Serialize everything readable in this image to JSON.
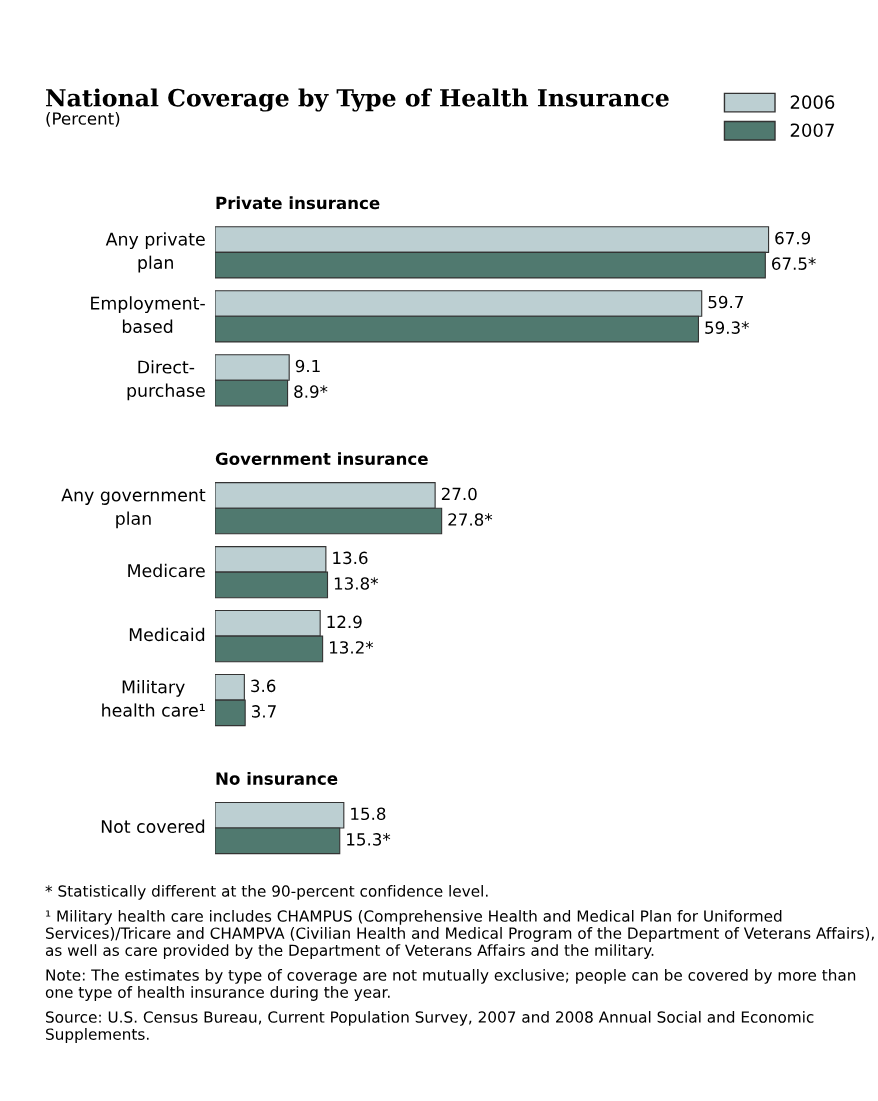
{
  "chart_data": {
    "type": "bar",
    "orientation": "horizontal",
    "title": "National Coverage by Type of Health Insurance",
    "subtitle": "(Percent)",
    "categories": [
      "Private insurance",
      "Any private\nplan",
      "Employment-\nbased",
      "Direct-\npurchase",
      "Government insurance",
      "Any government\nplan",
      "Medicare",
      "Medicaid",
      "Military\nhealth care¹",
      "No insurance",
      "Not covered"
    ],
    "series": [
      {
        "name": "2006",
        "color": "#bccfd2",
        "values": [
          null,
          67.9,
          59.7,
          9.1,
          null,
          27.0,
          13.6,
          12.9,
          3.6,
          null,
          15.8
        ],
        "value_labels": [
          null,
          "67.9",
          "59.7",
          "9.1",
          null,
          "27.0",
          "13.6",
          "12.9",
          "3.6",
          null,
          "15.8"
        ]
      },
      {
        "name": "2007",
        "color": "#50796f",
        "values": [
          null,
          67.5,
          59.3,
          8.9,
          null,
          27.8,
          13.8,
          13.2,
          3.7,
          null,
          15.3
        ],
        "value_labels": [
          null,
          "67.5*",
          "59.3*",
          "8.9*",
          null,
          "27.8*",
          "13.8*",
          "13.2*",
          "3.7",
          null,
          "15.3*"
        ]
      }
    ],
    "legend": "top right",
    "annotations": [
      "* Statistically different at the 90-percent confidence level.",
      "¹ Military health care includes CHAMPUS (Comprehensive Health and Medical Plan for Uniformed Services)/Tricare and CHAMPVA (Civilian Health and Medical Program of the Department of Veterans Affairs), as well as care provided by the Department of Veterans Affairs and the military.",
      "Note: The estimates by type of coverage are not mutually exclusive; people can be covered by more than one type of health insurance during the year.",
      "Source: U.S. Census Bureau, Current Population Survey, 2007 and 2008 Annual Social and Economic Supplements."
    ]
  }
}
